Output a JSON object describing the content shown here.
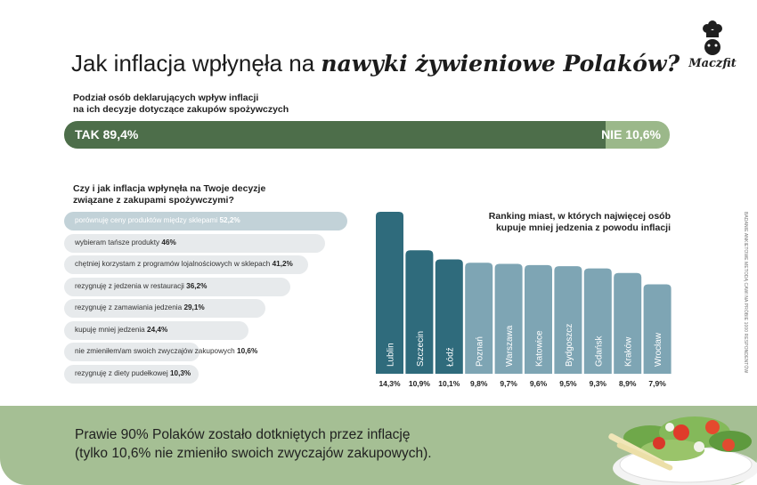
{
  "header": {
    "title_regular": "Jak inflacja wpłynęła na ",
    "title_bold": "nawyki żywieniowe Polaków?",
    "brand": "Maczfit"
  },
  "split": {
    "subtitle_line1": "Podział osób deklarujących wpływ inflacji",
    "subtitle_line2": "na ich decyzje dotyczące zakupów spożywczych",
    "yes_label": "TAK 89,4%",
    "no_label": "NIE 10,6%",
    "yes_fraction": 0.894,
    "yes_color": "#4d6e4a",
    "no_color": "#9bb88a"
  },
  "reasons": {
    "title_line1": "Czy i jak inflacja wpłynęła na Twoje decyzje",
    "title_line2": "związane z zakupami spożywczymi?",
    "items": [
      {
        "text": "porównuję ceny produktów między sklepami",
        "value_label": "52,2%",
        "value": 52.2
      },
      {
        "text": "wybieram tańsze produkty",
        "value_label": "46%",
        "value": 46.0
      },
      {
        "text": "chętniej korzystam z programów lojalnościowych w sklepach",
        "value_label": "41,2%",
        "value": 41.2
      },
      {
        "text": "rezygnuję z jedzenia w restauracji",
        "value_label": "36,2%",
        "value": 36.2
      },
      {
        "text": "rezygnuję z zamawiania jedzenia",
        "value_label": "29,1%",
        "value": 29.1
      },
      {
        "text": "kupuję mniej jedzenia",
        "value_label": "24,4%",
        "value": 24.4
      },
      {
        "text": "nie zmieniłem/am swoich zwyczajów zakupowych",
        "value_label": "10,6%",
        "value": 10.6
      },
      {
        "text": "rezygnuję z diety pudełkowej",
        "value_label": "10,3%",
        "value": 10.3
      }
    ]
  },
  "chart_data": {
    "type": "bar",
    "title": "Ranking miast, w których najwięcej osób kupuje mniej jedzenia z powodu inflacji",
    "title_line1": "Ranking miast, w których najwięcej osób",
    "title_line2": "kupuje mniej jedzenia z powodu inflacji",
    "categories": [
      "Lublin",
      "Szczecin",
      "Łódź",
      "Poznań",
      "Warszawa",
      "Katowice",
      "Bydgoszcz",
      "Gdańsk",
      "Kraków",
      "Wrocław"
    ],
    "values": [
      14.3,
      10.9,
      10.1,
      9.8,
      9.7,
      9.6,
      9.5,
      9.3,
      8.9,
      7.9
    ],
    "value_labels": [
      "14,3%",
      "10,9%",
      "10,1%",
      "9,8%",
      "9,7%",
      "9,6%",
      "9,5%",
      "9,3%",
      "8,9%",
      "7,9%"
    ],
    "ylim": [
      0,
      14.3
    ],
    "grid": false,
    "highlight_count": 3,
    "highlight_color": "#2f6b7c",
    "base_color": "#7ea5b4"
  },
  "side_note": "BADANIE ANKIETOWE METODĄ CAWI NA PRÓBIE 1000 RESPONDENTÓW",
  "footer": {
    "line1": "Prawie 90% Polaków zostało dotkniętych przez inflację",
    "line2": "(tylko 10,6% nie zmieniło swoich zwyczajów zakupowych)."
  }
}
